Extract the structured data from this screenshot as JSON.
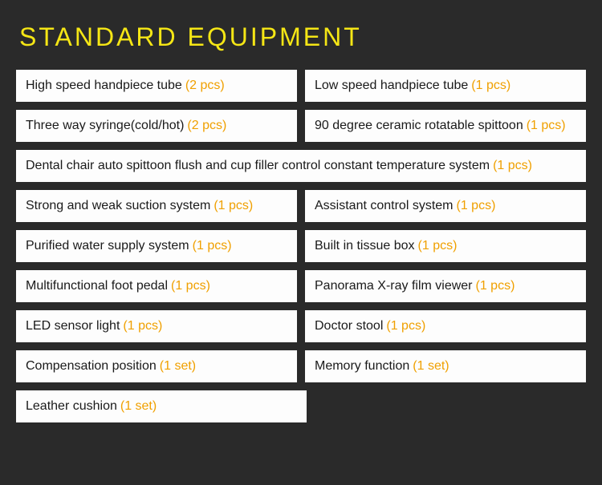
{
  "title": "STANDARD EQUIPMENT",
  "colors": {
    "background": "#2a2a2a",
    "title": "#f5e615",
    "cell_bg": "#fdfdfd",
    "cell_text": "#1a1a1a",
    "qty": "#f0a000"
  },
  "rows": [
    {
      "full": false,
      "left": {
        "label": "High speed handpiece tube",
        "qty": "(2 pcs)"
      },
      "right": {
        "label": "Low speed handpiece tube",
        "qty": "(1 pcs)"
      }
    },
    {
      "full": false,
      "left": {
        "label": "Three way syringe(cold/hot)",
        "qty": "(2 pcs)"
      },
      "right": {
        "label": "90 degree ceramic rotatable spittoon",
        "qty": "(1 pcs)"
      }
    },
    {
      "full": true,
      "left": {
        "label": "Dental chair auto spittoon flush and cup filler control constant temperature system",
        "qty": "(1 pcs)"
      }
    },
    {
      "full": false,
      "left": {
        "label": "Strong and weak suction system",
        "qty": "(1 pcs)"
      },
      "right": {
        "label": "Assistant control system",
        "qty": "(1 pcs)"
      }
    },
    {
      "full": false,
      "left": {
        "label": "Purified water supply system",
        "qty": "(1 pcs)"
      },
      "right": {
        "label": "Built in tissue box ",
        "qty": "(1 pcs)"
      }
    },
    {
      "full": false,
      "left": {
        "label": "Multifunctional foot pedal",
        "qty": "(1 pcs)"
      },
      "right": {
        "label": "Panorama X-ray film viewer",
        "qty": "(1 pcs)"
      }
    },
    {
      "full": false,
      "left": {
        "label": "LED sensor light",
        "qty": "(1 pcs)"
      },
      "right": {
        "label": "Doctor stool",
        "qty": "(1 pcs)"
      }
    },
    {
      "full": false,
      "left": {
        "label": "Compensation position",
        "qty": "(1 set)"
      },
      "right": {
        "label": "Memory function",
        "qty": "(1 set)"
      }
    },
    {
      "full": false,
      "half": true,
      "left": {
        "label": "Leather cushion",
        "qty": "(1 set)"
      }
    }
  ]
}
